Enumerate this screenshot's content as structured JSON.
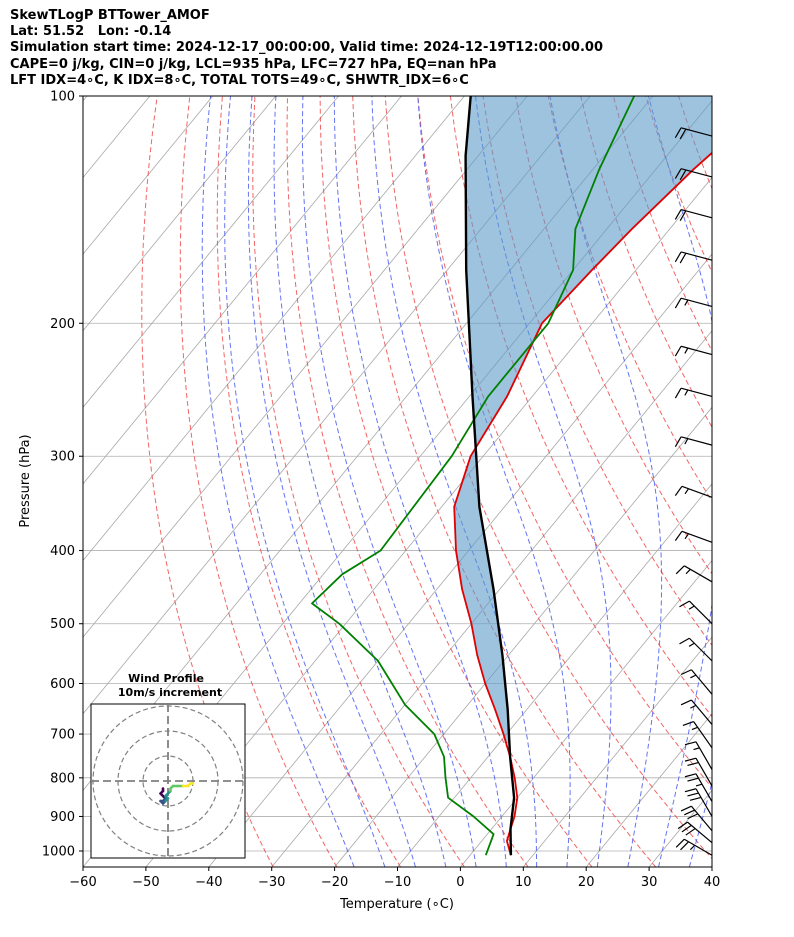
{
  "header": {
    "line1": "SkewTLogP BTTower_AMOF",
    "line2": "Lat: 51.52   Lon: -0.14",
    "line3": "Simulation start time: 2024-12-17_00:00:00, Valid time: 2024-12-19T12:00:00.00",
    "line4": "CAPE=0 j/kg, CIN=0 j/kg, LCL=935 hPa, LFC=727 hPa, EQ=nan hPa",
    "line5": "LFT IDX=4∘C, K IDX=8∘C, TOTAL TOTS=49∘C, SHWTR_IDX=6∘C"
  },
  "chart_data": {
    "type": "line",
    "xlabel": "Temperature (∘C)",
    "ylabel": "Pressure (hPa)",
    "xlim": [
      -60,
      40
    ],
    "ylim": [
      1050,
      100
    ],
    "y_scale": "log",
    "x_ticks": [
      "−60",
      "−50",
      "−40",
      "−30",
      "−20",
      "−10",
      "0",
      "10",
      "20",
      "30",
      "40"
    ],
    "y_ticks": [
      "1000",
      "900",
      "800",
      "700",
      "600",
      "500",
      "400",
      "300",
      "200",
      "100"
    ],
    "grid": true,
    "skew": true,
    "series": [
      {
        "id": "temperature",
        "color": "#e00000",
        "points": [
          [
            6.5,
            1013
          ],
          [
            4,
            970
          ],
          [
            3,
            935
          ],
          [
            2,
            900
          ],
          [
            0,
            850
          ],
          [
            -3,
            800
          ],
          [
            -6.5,
            750
          ],
          [
            -10.5,
            700
          ],
          [
            -15,
            650
          ],
          [
            -20,
            600
          ],
          [
            -25,
            550
          ],
          [
            -30,
            500
          ],
          [
            -36,
            450
          ],
          [
            -42,
            400
          ],
          [
            -48,
            350
          ],
          [
            -52,
            300
          ],
          [
            -54,
            250
          ],
          [
            -58,
            200
          ],
          [
            -57,
            170
          ],
          [
            -56,
            150
          ],
          [
            -54,
            125
          ],
          [
            -52,
            110
          ],
          [
            -51.5,
            100
          ]
        ]
      },
      {
        "id": "dewpoint",
        "color": "#008000",
        "points": [
          [
            2.5,
            1013
          ],
          [
            1,
            950
          ],
          [
            -4.5,
            900
          ],
          [
            -11,
            850
          ],
          [
            -14,
            800
          ],
          [
            -17,
            750
          ],
          [
            -21.5,
            700
          ],
          [
            -30,
            640
          ],
          [
            -40,
            560
          ],
          [
            -51,
            500
          ],
          [
            -58,
            470
          ],
          [
            -57,
            430
          ],
          [
            -54,
            400
          ],
          [
            -55,
            300
          ],
          [
            -57,
            250
          ],
          [
            -57,
            200
          ],
          [
            -60,
            170
          ],
          [
            -65,
            150
          ],
          [
            -69,
            125
          ],
          [
            -73,
            100
          ]
        ]
      },
      {
        "id": "parcel",
        "color": "#000000",
        "points": [
          [
            6.5,
            1013
          ],
          [
            3,
            935
          ],
          [
            -0.5,
            850
          ],
          [
            -6.5,
            750
          ],
          [
            -13,
            650
          ],
          [
            -21,
            550
          ],
          [
            -31,
            450
          ],
          [
            -44,
            350
          ],
          [
            -59.5,
            250
          ],
          [
            -77,
            170
          ],
          [
            -92,
            120
          ],
          [
            -99,
            100
          ]
        ]
      }
    ],
    "cape_fill_color": "#5b9bc9",
    "dry_adiabats_theta_K": [
      240,
      250,
      260,
      270,
      280,
      290,
      300,
      310,
      320,
      330,
      340,
      350,
      360,
      370,
      380,
      390,
      400,
      410,
      420,
      430,
      440,
      450,
      460,
      470
    ],
    "moist_adiabats_start_C": [
      -20,
      -15,
      -10,
      -5,
      0,
      5,
      10,
      15,
      20,
      25,
      30,
      35,
      40
    ],
    "wind_barbs": [
      {
        "p": 1013,
        "speed_kt": 25,
        "dir_deg": 300
      },
      {
        "p": 975,
        "speed_kt": 30,
        "dir_deg": 310
      },
      {
        "p": 940,
        "speed_kt": 30,
        "dir_deg": 320
      },
      {
        "p": 900,
        "speed_kt": 30,
        "dir_deg": 330
      },
      {
        "p": 860,
        "speed_kt": 25,
        "dir_deg": 330
      },
      {
        "p": 820,
        "speed_kt": 20,
        "dir_deg": 330
      },
      {
        "p": 780,
        "speed_kt": 15,
        "dir_deg": 330
      },
      {
        "p": 730,
        "speed_kt": 15,
        "dir_deg": 325
      },
      {
        "p": 680,
        "speed_kt": 15,
        "dir_deg": 320
      },
      {
        "p": 620,
        "speed_kt": 15,
        "dir_deg": 320
      },
      {
        "p": 560,
        "speed_kt": 15,
        "dir_deg": 315
      },
      {
        "p": 500,
        "speed_kt": 15,
        "dir_deg": 315
      },
      {
        "p": 440,
        "speed_kt": 15,
        "dir_deg": 300
      },
      {
        "p": 390,
        "speed_kt": 15,
        "dir_deg": 290
      },
      {
        "p": 340,
        "speed_kt": 15,
        "dir_deg": 290
      },
      {
        "p": 290,
        "speed_kt": 15,
        "dir_deg": 285
      },
      {
        "p": 250,
        "speed_kt": 15,
        "dir_deg": 285
      },
      {
        "p": 220,
        "speed_kt": 15,
        "dir_deg": 285
      },
      {
        "p": 190,
        "speed_kt": 15,
        "dir_deg": 285
      },
      {
        "p": 165,
        "speed_kt": 20,
        "dir_deg": 285
      },
      {
        "p": 145,
        "speed_kt": 20,
        "dir_deg": 285
      },
      {
        "p": 128,
        "speed_kt": 20,
        "dir_deg": 285
      },
      {
        "p": 113,
        "speed_kt": 20,
        "dir_deg": 285
      }
    ],
    "inset": {
      "title_line1": "Wind Profile",
      "title_line2": "10m/s increment",
      "rings_ms": [
        10,
        20,
        30
      ],
      "hodograph_uv": [
        [
          -2,
          -3
        ],
        [
          -2,
          -4
        ],
        [
          -3,
          -5
        ],
        [
          -2,
          -6
        ],
        [
          -1,
          -7
        ],
        [
          -2,
          -8
        ],
        [
          -3,
          -8
        ],
        [
          -2,
          -9
        ],
        [
          -1,
          -8
        ],
        [
          0,
          -7
        ],
        [
          -1,
          -6
        ],
        [
          0,
          -5
        ],
        [
          1,
          -4
        ],
        [
          1,
          -3
        ],
        [
          2,
          -2
        ],
        [
          4,
          -2
        ],
        [
          6,
          -2
        ],
        [
          8,
          -2
        ],
        [
          9,
          -1
        ],
        [
          10,
          -1
        ]
      ],
      "hodograph_colormap": [
        "#440154",
        "#3b528b",
        "#21918c",
        "#5ec962",
        "#fde725"
      ]
    }
  }
}
